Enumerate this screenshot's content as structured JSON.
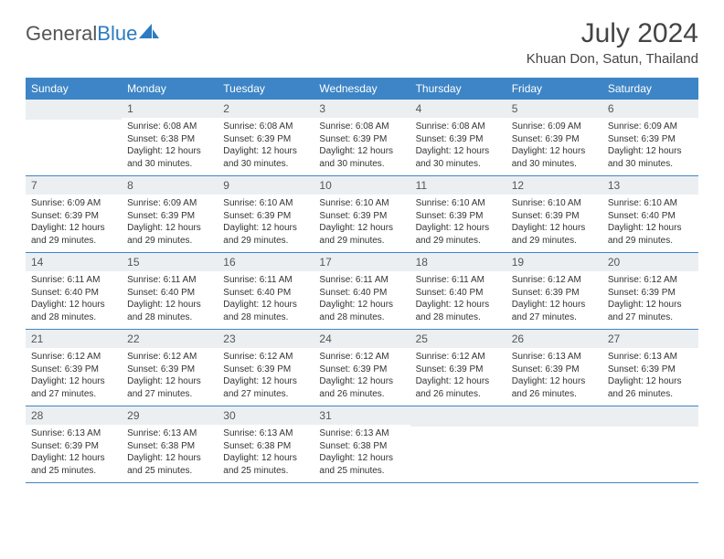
{
  "logo": {
    "text1": "General",
    "text2": "Blue"
  },
  "title": "July 2024",
  "location": "Khuan Don, Satun, Thailand",
  "colors": {
    "header_bg": "#3d85c6",
    "header_text": "#ffffff",
    "daynum_bg": "#eceff1",
    "row_border": "#3d85c6",
    "logo_gray": "#555555",
    "logo_blue": "#2d7bc0"
  },
  "weekdays": [
    "Sunday",
    "Monday",
    "Tuesday",
    "Wednesday",
    "Thursday",
    "Friday",
    "Saturday"
  ],
  "weeks": [
    [
      {
        "n": "",
        "lines": []
      },
      {
        "n": "1",
        "lines": [
          "Sunrise: 6:08 AM",
          "Sunset: 6:38 PM",
          "Daylight: 12 hours and 30 minutes."
        ]
      },
      {
        "n": "2",
        "lines": [
          "Sunrise: 6:08 AM",
          "Sunset: 6:39 PM",
          "Daylight: 12 hours and 30 minutes."
        ]
      },
      {
        "n": "3",
        "lines": [
          "Sunrise: 6:08 AM",
          "Sunset: 6:39 PM",
          "Daylight: 12 hours and 30 minutes."
        ]
      },
      {
        "n": "4",
        "lines": [
          "Sunrise: 6:08 AM",
          "Sunset: 6:39 PM",
          "Daylight: 12 hours and 30 minutes."
        ]
      },
      {
        "n": "5",
        "lines": [
          "Sunrise: 6:09 AM",
          "Sunset: 6:39 PM",
          "Daylight: 12 hours and 30 minutes."
        ]
      },
      {
        "n": "6",
        "lines": [
          "Sunrise: 6:09 AM",
          "Sunset: 6:39 PM",
          "Daylight: 12 hours and 30 minutes."
        ]
      }
    ],
    [
      {
        "n": "7",
        "lines": [
          "Sunrise: 6:09 AM",
          "Sunset: 6:39 PM",
          "Daylight: 12 hours and 29 minutes."
        ]
      },
      {
        "n": "8",
        "lines": [
          "Sunrise: 6:09 AM",
          "Sunset: 6:39 PM",
          "Daylight: 12 hours and 29 minutes."
        ]
      },
      {
        "n": "9",
        "lines": [
          "Sunrise: 6:10 AM",
          "Sunset: 6:39 PM",
          "Daylight: 12 hours and 29 minutes."
        ]
      },
      {
        "n": "10",
        "lines": [
          "Sunrise: 6:10 AM",
          "Sunset: 6:39 PM",
          "Daylight: 12 hours and 29 minutes."
        ]
      },
      {
        "n": "11",
        "lines": [
          "Sunrise: 6:10 AM",
          "Sunset: 6:39 PM",
          "Daylight: 12 hours and 29 minutes."
        ]
      },
      {
        "n": "12",
        "lines": [
          "Sunrise: 6:10 AM",
          "Sunset: 6:39 PM",
          "Daylight: 12 hours and 29 minutes."
        ]
      },
      {
        "n": "13",
        "lines": [
          "Sunrise: 6:10 AM",
          "Sunset: 6:40 PM",
          "Daylight: 12 hours and 29 minutes."
        ]
      }
    ],
    [
      {
        "n": "14",
        "lines": [
          "Sunrise: 6:11 AM",
          "Sunset: 6:40 PM",
          "Daylight: 12 hours and 28 minutes."
        ]
      },
      {
        "n": "15",
        "lines": [
          "Sunrise: 6:11 AM",
          "Sunset: 6:40 PM",
          "Daylight: 12 hours and 28 minutes."
        ]
      },
      {
        "n": "16",
        "lines": [
          "Sunrise: 6:11 AM",
          "Sunset: 6:40 PM",
          "Daylight: 12 hours and 28 minutes."
        ]
      },
      {
        "n": "17",
        "lines": [
          "Sunrise: 6:11 AM",
          "Sunset: 6:40 PM",
          "Daylight: 12 hours and 28 minutes."
        ]
      },
      {
        "n": "18",
        "lines": [
          "Sunrise: 6:11 AM",
          "Sunset: 6:40 PM",
          "Daylight: 12 hours and 28 minutes."
        ]
      },
      {
        "n": "19",
        "lines": [
          "Sunrise: 6:12 AM",
          "Sunset: 6:39 PM",
          "Daylight: 12 hours and 27 minutes."
        ]
      },
      {
        "n": "20",
        "lines": [
          "Sunrise: 6:12 AM",
          "Sunset: 6:39 PM",
          "Daylight: 12 hours and 27 minutes."
        ]
      }
    ],
    [
      {
        "n": "21",
        "lines": [
          "Sunrise: 6:12 AM",
          "Sunset: 6:39 PM",
          "Daylight: 12 hours and 27 minutes."
        ]
      },
      {
        "n": "22",
        "lines": [
          "Sunrise: 6:12 AM",
          "Sunset: 6:39 PM",
          "Daylight: 12 hours and 27 minutes."
        ]
      },
      {
        "n": "23",
        "lines": [
          "Sunrise: 6:12 AM",
          "Sunset: 6:39 PM",
          "Daylight: 12 hours and 27 minutes."
        ]
      },
      {
        "n": "24",
        "lines": [
          "Sunrise: 6:12 AM",
          "Sunset: 6:39 PM",
          "Daylight: 12 hours and 26 minutes."
        ]
      },
      {
        "n": "25",
        "lines": [
          "Sunrise: 6:12 AM",
          "Sunset: 6:39 PM",
          "Daylight: 12 hours and 26 minutes."
        ]
      },
      {
        "n": "26",
        "lines": [
          "Sunrise: 6:13 AM",
          "Sunset: 6:39 PM",
          "Daylight: 12 hours and 26 minutes."
        ]
      },
      {
        "n": "27",
        "lines": [
          "Sunrise: 6:13 AM",
          "Sunset: 6:39 PM",
          "Daylight: 12 hours and 26 minutes."
        ]
      }
    ],
    [
      {
        "n": "28",
        "lines": [
          "Sunrise: 6:13 AM",
          "Sunset: 6:39 PM",
          "Daylight: 12 hours and 25 minutes."
        ]
      },
      {
        "n": "29",
        "lines": [
          "Sunrise: 6:13 AM",
          "Sunset: 6:38 PM",
          "Daylight: 12 hours and 25 minutes."
        ]
      },
      {
        "n": "30",
        "lines": [
          "Sunrise: 6:13 AM",
          "Sunset: 6:38 PM",
          "Daylight: 12 hours and 25 minutes."
        ]
      },
      {
        "n": "31",
        "lines": [
          "Sunrise: 6:13 AM",
          "Sunset: 6:38 PM",
          "Daylight: 12 hours and 25 minutes."
        ]
      },
      {
        "n": "",
        "lines": []
      },
      {
        "n": "",
        "lines": []
      },
      {
        "n": "",
        "lines": []
      }
    ]
  ]
}
